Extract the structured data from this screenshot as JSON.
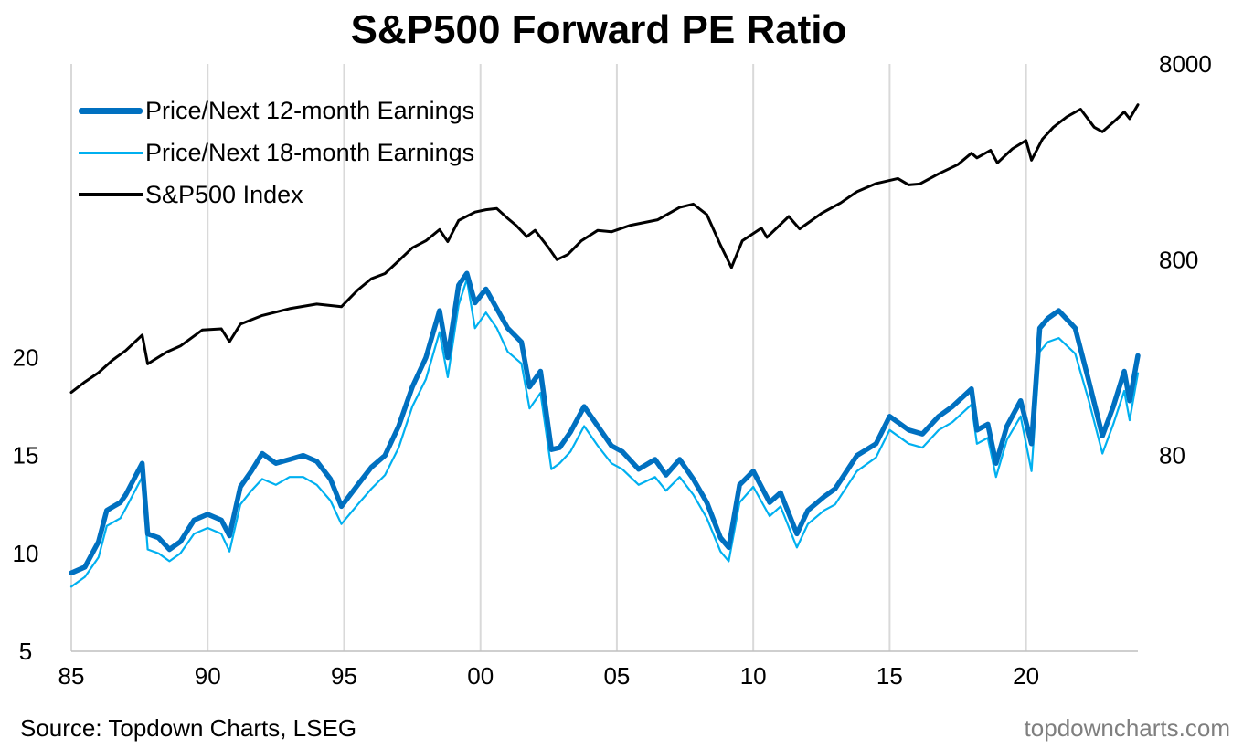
{
  "chart_data": {
    "type": "line",
    "title": "S&P500 Forward PE Ratio",
    "x_range": [
      1985,
      2024.1
    ],
    "x_ticks": [
      1985,
      1990,
      1995,
      2000,
      2005,
      2010,
      2015,
      2020
    ],
    "x_tick_labels": [
      "85",
      "90",
      "95",
      "00",
      "05",
      "10",
      "15",
      "20"
    ],
    "grid": "vertical",
    "left_axis": {
      "scale": "linear",
      "range": [
        5,
        35
      ],
      "ticks": [
        5,
        10,
        15,
        20
      ],
      "tick_labels": [
        "5",
        "10",
        "15",
        "20"
      ]
    },
    "right_axis": {
      "scale": "log",
      "range": [
        8,
        8000
      ],
      "ticks": [
        80,
        800,
        8000
      ],
      "tick_labels": [
        "80",
        "800",
        "8000"
      ]
    },
    "legend_position": "top-left",
    "series": [
      {
        "name": "Price/Next 12-month Earnings",
        "axis": "left",
        "color": "#0070C0",
        "style": "thick",
        "points": [
          [
            1985.0,
            9.0
          ],
          [
            1985.5,
            9.3
          ],
          [
            1986.0,
            10.6
          ],
          [
            1986.3,
            12.2
          ],
          [
            1986.8,
            12.6
          ],
          [
            1987.0,
            13.0
          ],
          [
            1987.3,
            13.8
          ],
          [
            1987.6,
            14.6
          ],
          [
            1987.8,
            11.0
          ],
          [
            1988.2,
            10.8
          ],
          [
            1988.6,
            10.2
          ],
          [
            1989.0,
            10.6
          ],
          [
            1989.5,
            11.7
          ],
          [
            1990.0,
            12.0
          ],
          [
            1990.5,
            11.7
          ],
          [
            1990.8,
            10.9
          ],
          [
            1991.2,
            13.4
          ],
          [
            1991.6,
            14.2
          ],
          [
            1992.0,
            15.1
          ],
          [
            1992.5,
            14.6
          ],
          [
            1993.0,
            14.8
          ],
          [
            1993.5,
            15.0
          ],
          [
            1994.0,
            14.7
          ],
          [
            1994.5,
            13.8
          ],
          [
            1994.9,
            12.4
          ],
          [
            1995.5,
            13.5
          ],
          [
            1996.0,
            14.4
          ],
          [
            1996.5,
            15.0
          ],
          [
            1997.0,
            16.5
          ],
          [
            1997.5,
            18.5
          ],
          [
            1998.0,
            20.0
          ],
          [
            1998.5,
            22.4
          ],
          [
            1998.8,
            20.0
          ],
          [
            1999.2,
            23.7
          ],
          [
            1999.5,
            24.3
          ],
          [
            1999.8,
            22.8
          ],
          [
            2000.2,
            23.5
          ],
          [
            2000.6,
            22.5
          ],
          [
            2001.0,
            21.5
          ],
          [
            2001.5,
            20.8
          ],
          [
            2001.8,
            18.5
          ],
          [
            2002.2,
            19.3
          ],
          [
            2002.6,
            15.3
          ],
          [
            2002.9,
            15.4
          ],
          [
            2003.3,
            16.2
          ],
          [
            2003.8,
            17.5
          ],
          [
            2004.3,
            16.5
          ],
          [
            2004.8,
            15.5
          ],
          [
            2005.2,
            15.2
          ],
          [
            2005.8,
            14.3
          ],
          [
            2006.4,
            14.8
          ],
          [
            2006.8,
            14.0
          ],
          [
            2007.3,
            14.8
          ],
          [
            2007.8,
            13.8
          ],
          [
            2008.3,
            12.6
          ],
          [
            2008.8,
            10.8
          ],
          [
            2009.1,
            10.3
          ],
          [
            2009.5,
            13.5
          ],
          [
            2010.0,
            14.2
          ],
          [
            2010.6,
            12.6
          ],
          [
            2011.0,
            13.1
          ],
          [
            2011.6,
            11.0
          ],
          [
            2012.0,
            12.2
          ],
          [
            2012.6,
            12.9
          ],
          [
            2013.0,
            13.3
          ],
          [
            2013.8,
            15.0
          ],
          [
            2014.5,
            15.6
          ],
          [
            2015.0,
            17.0
          ],
          [
            2015.7,
            16.3
          ],
          [
            2016.2,
            16.1
          ],
          [
            2016.8,
            17.0
          ],
          [
            2017.3,
            17.5
          ],
          [
            2018.0,
            18.4
          ],
          [
            2018.2,
            16.3
          ],
          [
            2018.6,
            16.6
          ],
          [
            2018.9,
            14.6
          ],
          [
            2019.3,
            16.5
          ],
          [
            2019.8,
            17.8
          ],
          [
            2020.2,
            15.6
          ],
          [
            2020.5,
            21.5
          ],
          [
            2020.8,
            22.0
          ],
          [
            2021.2,
            22.4
          ],
          [
            2021.8,
            21.5
          ],
          [
            2022.3,
            18.8
          ],
          [
            2022.8,
            16.0
          ],
          [
            2023.2,
            17.5
          ],
          [
            2023.6,
            19.3
          ],
          [
            2023.8,
            17.8
          ],
          [
            2024.1,
            20.1
          ]
        ]
      },
      {
        "name": "Price/Next 18-month Earnings",
        "axis": "left",
        "color": "#00B0F0",
        "style": "thin",
        "points": [
          [
            1985.0,
            8.3
          ],
          [
            1985.5,
            8.8
          ],
          [
            1986.0,
            9.8
          ],
          [
            1986.3,
            11.4
          ],
          [
            1986.8,
            11.8
          ],
          [
            1987.0,
            12.3
          ],
          [
            1987.3,
            13.1
          ],
          [
            1987.6,
            13.9
          ],
          [
            1987.8,
            10.2
          ],
          [
            1988.2,
            10.0
          ],
          [
            1988.6,
            9.6
          ],
          [
            1989.0,
            10.0
          ],
          [
            1989.5,
            11.0
          ],
          [
            1990.0,
            11.3
          ],
          [
            1990.5,
            11.0
          ],
          [
            1990.8,
            10.1
          ],
          [
            1991.2,
            12.5
          ],
          [
            1991.6,
            13.2
          ],
          [
            1992.0,
            13.8
          ],
          [
            1992.5,
            13.5
          ],
          [
            1993.0,
            13.9
          ],
          [
            1993.5,
            13.9
          ],
          [
            1994.0,
            13.5
          ],
          [
            1994.5,
            12.7
          ],
          [
            1994.9,
            11.5
          ],
          [
            1995.5,
            12.5
          ],
          [
            1996.0,
            13.3
          ],
          [
            1996.5,
            14.0
          ],
          [
            1997.0,
            15.4
          ],
          [
            1997.5,
            17.5
          ],
          [
            1998.0,
            18.9
          ],
          [
            1998.5,
            21.3
          ],
          [
            1998.8,
            19.0
          ],
          [
            1999.2,
            22.7
          ],
          [
            1999.5,
            24.0
          ],
          [
            1999.8,
            21.5
          ],
          [
            2000.2,
            22.3
          ],
          [
            2000.6,
            21.5
          ],
          [
            2001.0,
            20.3
          ],
          [
            2001.5,
            19.7
          ],
          [
            2001.8,
            17.4
          ],
          [
            2002.2,
            18.2
          ],
          [
            2002.6,
            14.3
          ],
          [
            2002.9,
            14.6
          ],
          [
            2003.3,
            15.2
          ],
          [
            2003.8,
            16.5
          ],
          [
            2004.3,
            15.5
          ],
          [
            2004.8,
            14.6
          ],
          [
            2005.2,
            14.3
          ],
          [
            2005.8,
            13.5
          ],
          [
            2006.4,
            13.9
          ],
          [
            2006.8,
            13.2
          ],
          [
            2007.3,
            13.9
          ],
          [
            2007.8,
            13.0
          ],
          [
            2008.3,
            11.8
          ],
          [
            2008.8,
            10.1
          ],
          [
            2009.1,
            9.6
          ],
          [
            2009.5,
            12.6
          ],
          [
            2010.0,
            13.4
          ],
          [
            2010.6,
            11.9
          ],
          [
            2011.0,
            12.4
          ],
          [
            2011.6,
            10.3
          ],
          [
            2012.0,
            11.5
          ],
          [
            2012.6,
            12.2
          ],
          [
            2013.0,
            12.5
          ],
          [
            2013.8,
            14.2
          ],
          [
            2014.5,
            14.9
          ],
          [
            2015.0,
            16.3
          ],
          [
            2015.7,
            15.6
          ],
          [
            2016.2,
            15.4
          ],
          [
            2016.8,
            16.3
          ],
          [
            2017.3,
            16.7
          ],
          [
            2018.0,
            17.6
          ],
          [
            2018.2,
            15.6
          ],
          [
            2018.6,
            15.9
          ],
          [
            2018.9,
            13.9
          ],
          [
            2019.3,
            15.8
          ],
          [
            2019.8,
            17.0
          ],
          [
            2020.2,
            14.2
          ],
          [
            2020.5,
            20.3
          ],
          [
            2020.8,
            20.8
          ],
          [
            2021.2,
            21.0
          ],
          [
            2021.8,
            20.2
          ],
          [
            2022.3,
            17.8
          ],
          [
            2022.8,
            15.1
          ],
          [
            2023.2,
            16.6
          ],
          [
            2023.6,
            18.3
          ],
          [
            2023.8,
            16.8
          ],
          [
            2024.1,
            19.2
          ]
        ]
      },
      {
        "name": "S&P500 Index",
        "axis": "right",
        "color": "#000000",
        "style": "medium",
        "points": [
          [
            1985.0,
            168
          ],
          [
            1985.5,
            190
          ],
          [
            1986.0,
            212
          ],
          [
            1986.5,
            245
          ],
          [
            1987.0,
            275
          ],
          [
            1987.6,
            330
          ],
          [
            1987.8,
            235
          ],
          [
            1988.5,
            270
          ],
          [
            1989.0,
            290
          ],
          [
            1989.8,
            350
          ],
          [
            1990.5,
            355
          ],
          [
            1990.8,
            305
          ],
          [
            1991.2,
            375
          ],
          [
            1992.0,
            415
          ],
          [
            1993.0,
            450
          ],
          [
            1994.0,
            475
          ],
          [
            1994.9,
            460
          ],
          [
            1995.5,
            560
          ],
          [
            1996.0,
            640
          ],
          [
            1996.5,
            680
          ],
          [
            1997.0,
            790
          ],
          [
            1997.5,
            920
          ],
          [
            1998.0,
            1000
          ],
          [
            1998.5,
            1140
          ],
          [
            1998.8,
            990
          ],
          [
            1999.2,
            1270
          ],
          [
            1999.8,
            1400
          ],
          [
            2000.2,
            1440
          ],
          [
            2000.6,
            1460
          ],
          [
            2001.0,
            1300
          ],
          [
            2001.3,
            1200
          ],
          [
            2001.7,
            1050
          ],
          [
            2002.0,
            1130
          ],
          [
            2002.5,
            920
          ],
          [
            2002.8,
            800
          ],
          [
            2003.2,
            850
          ],
          [
            2003.7,
            1000
          ],
          [
            2004.3,
            1130
          ],
          [
            2004.8,
            1110
          ],
          [
            2005.5,
            1200
          ],
          [
            2006.5,
            1280
          ],
          [
            2007.3,
            1480
          ],
          [
            2007.8,
            1540
          ],
          [
            2008.3,
            1360
          ],
          [
            2008.8,
            950
          ],
          [
            2009.2,
            730
          ],
          [
            2009.6,
            1000
          ],
          [
            2010.3,
            1160
          ],
          [
            2010.5,
            1040
          ],
          [
            2011.3,
            1330
          ],
          [
            2011.7,
            1150
          ],
          [
            2012.5,
            1380
          ],
          [
            2013.2,
            1560
          ],
          [
            2013.8,
            1780
          ],
          [
            2014.5,
            1960
          ],
          [
            2015.3,
            2080
          ],
          [
            2015.7,
            1930
          ],
          [
            2016.1,
            1950
          ],
          [
            2016.8,
            2200
          ],
          [
            2017.5,
            2450
          ],
          [
            2018.0,
            2800
          ],
          [
            2018.2,
            2650
          ],
          [
            2018.7,
            2900
          ],
          [
            2018.95,
            2500
          ],
          [
            2019.5,
            2950
          ],
          [
            2020.0,
            3250
          ],
          [
            2020.2,
            2580
          ],
          [
            2020.6,
            3300
          ],
          [
            2021.0,
            3800
          ],
          [
            2021.5,
            4300
          ],
          [
            2022.0,
            4700
          ],
          [
            2022.5,
            3800
          ],
          [
            2022.8,
            3600
          ],
          [
            2023.3,
            4150
          ],
          [
            2023.6,
            4550
          ],
          [
            2023.8,
            4200
          ],
          [
            2024.1,
            4950
          ]
        ]
      }
    ]
  },
  "source": "Source: Topdown Charts, LSEG",
  "watermark": "topdowncharts.com"
}
